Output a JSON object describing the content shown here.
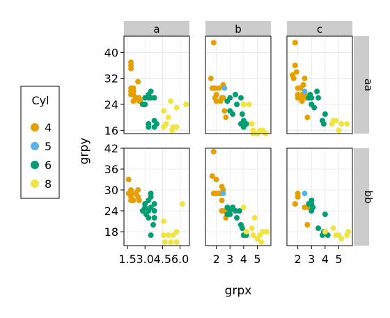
{
  "chart_data": {
    "type": "scatter",
    "xlabel": "grpx",
    "ylabel": "grpy",
    "legend": {
      "title": "Cyl",
      "position": "left",
      "entries": [
        "4",
        "5",
        "6",
        "8"
      ]
    },
    "colors": {
      "4": "#E69F00",
      "5": "#56B4E9",
      "6": "#009E73",
      "8": "#F0E442"
    },
    "columns": [
      "a",
      "b",
      "c"
    ],
    "rows": [
      "aa",
      "bb"
    ],
    "grid": true,
    "strip_color": "#cccccc",
    "facets": [
      {
        "col": "a",
        "row": "aa",
        "xlim": [
          1.2,
          6.8
        ],
        "ylim": [
          15,
          45
        ],
        "xticks": [
          1.5,
          3.0,
          4.5,
          6.0
        ],
        "yticks": [
          16,
          24,
          32,
          40
        ],
        "points": [
          [
            1.8,
            36,
            "4"
          ],
          [
            1.8,
            35,
            "4"
          ],
          [
            1.8,
            37,
            "4"
          ],
          [
            1.8,
            29,
            "4"
          ],
          [
            1.8,
            28,
            "4"
          ],
          [
            1.8,
            27,
            "4"
          ],
          [
            2.0,
            28,
            "4"
          ],
          [
            2.0,
            29,
            "4"
          ],
          [
            2.0,
            27,
            "4"
          ],
          [
            2.0,
            25,
            "4"
          ],
          [
            2.2,
            26,
            "4"
          ],
          [
            2.4,
            31,
            "4"
          ],
          [
            2.4,
            26,
            "4"
          ],
          [
            2.5,
            25,
            "4"
          ],
          [
            2.5,
            26,
            "4"
          ],
          [
            2.6,
            25,
            "4"
          ],
          [
            2.8,
            24,
            "6"
          ],
          [
            3.0,
            24,
            "6"
          ],
          [
            3.0,
            26,
            "6"
          ],
          [
            3.3,
            27,
            "6"
          ],
          [
            3.3,
            26,
            "6"
          ],
          [
            3.5,
            26,
            "6"
          ],
          [
            3.5,
            28,
            "6"
          ],
          [
            3.8,
            26,
            "6"
          ],
          [
            3.3,
            18,
            "6"
          ],
          [
            3.3,
            17,
            "6"
          ],
          [
            3.8,
            19,
            "6"
          ],
          [
            3.8,
            17,
            "6"
          ],
          [
            4.0,
            18,
            "6"
          ],
          [
            4.6,
            22,
            "8"
          ],
          [
            4.6,
            17,
            "8"
          ],
          [
            4.8,
            18,
            "8"
          ],
          [
            5.0,
            20,
            "8"
          ],
          [
            5.2,
            25,
            "8"
          ],
          [
            5.3,
            16,
            "8"
          ],
          [
            5.4,
            17,
            "8"
          ],
          [
            5.7,
            23,
            "8"
          ],
          [
            5.7,
            17,
            "8"
          ],
          [
            6.5,
            24,
            "8"
          ]
        ]
      },
      {
        "col": "b",
        "row": "aa",
        "xlim": [
          1.2,
          6.0
        ],
        "ylim": [
          15,
          45
        ],
        "xticks": [
          2,
          3,
          4,
          5
        ],
        "yticks": [
          16,
          24,
          32,
          40
        ],
        "points": [
          [
            1.8,
            43,
            "4"
          ],
          [
            1.6,
            32,
            "4"
          ],
          [
            1.7,
            29,
            "4"
          ],
          [
            1.9,
            29,
            "4"
          ],
          [
            1.9,
            26,
            "4"
          ],
          [
            2.0,
            27,
            "4"
          ],
          [
            2.0,
            25,
            "4"
          ],
          [
            2.2,
            29,
            "4"
          ],
          [
            2.3,
            25,
            "4"
          ],
          [
            2.4,
            26,
            "4"
          ],
          [
            2.5,
            30,
            "4"
          ],
          [
            2.5,
            26,
            "4"
          ],
          [
            2.6,
            22,
            "4"
          ],
          [
            2.7,
            20,
            "4"
          ],
          [
            2.6,
            29,
            "5"
          ],
          [
            2.8,
            25,
            "6"
          ],
          [
            3.0,
            26,
            "6"
          ],
          [
            3.0,
            22,
            "6"
          ],
          [
            3.2,
            21,
            "6"
          ],
          [
            3.4,
            27,
            "6"
          ],
          [
            3.5,
            24,
            "6"
          ],
          [
            3.8,
            26,
            "6"
          ],
          [
            3.8,
            18,
            "6"
          ],
          [
            3.9,
            21,
            "6"
          ],
          [
            4.0,
            17,
            "6"
          ],
          [
            4.0,
            19,
            "6"
          ],
          [
            4.2,
            18,
            "6"
          ],
          [
            4.0,
            24,
            "8"
          ],
          [
            4.4,
            24,
            "8"
          ],
          [
            4.6,
            18,
            "8"
          ],
          [
            4.7,
            16,
            "8"
          ],
          [
            4.7,
            15,
            "8"
          ],
          [
            5.0,
            15,
            "8"
          ],
          [
            5.2,
            16,
            "8"
          ],
          [
            5.4,
            16,
            "8"
          ],
          [
            5.6,
            15,
            "8"
          ]
        ]
      },
      {
        "col": "c",
        "row": "aa",
        "xlim": [
          1.2,
          6.0
        ],
        "ylim": [
          15,
          45
        ],
        "xticks": [
          2,
          3,
          4,
          5
        ],
        "yticks": [
          16,
          24,
          32,
          40
        ],
        "points": [
          [
            1.8,
            43,
            "4"
          ],
          [
            1.6,
            33,
            "4"
          ],
          [
            1.7,
            32,
            "4"
          ],
          [
            1.8,
            36,
            "4"
          ],
          [
            1.9,
            34,
            "4"
          ],
          [
            2.0,
            29,
            "4"
          ],
          [
            2.0,
            26,
            "4"
          ],
          [
            2.0,
            27,
            "4"
          ],
          [
            2.2,
            29,
            "4"
          ],
          [
            2.2,
            26,
            "4"
          ],
          [
            2.3,
            27,
            "4"
          ],
          [
            2.3,
            25,
            "4"
          ],
          [
            2.4,
            30,
            "4"
          ],
          [
            2.5,
            32,
            "4"
          ],
          [
            2.5,
            27,
            "4"
          ],
          [
            2.6,
            26,
            "4"
          ],
          [
            2.7,
            20,
            "4"
          ],
          [
            2.5,
            28,
            "5"
          ],
          [
            2.8,
            26,
            "6"
          ],
          [
            2.9,
            27,
            "6"
          ],
          [
            3.0,
            26,
            "6"
          ],
          [
            3.0,
            24,
            "6"
          ],
          [
            3.2,
            23,
            "6"
          ],
          [
            3.4,
            28,
            "6"
          ],
          [
            3.5,
            26,
            "6"
          ],
          [
            3.8,
            19,
            "6"
          ],
          [
            3.9,
            18,
            "6"
          ],
          [
            4.0,
            21,
            "6"
          ],
          [
            4.5,
            18,
            "8"
          ],
          [
            4.6,
            19,
            "8"
          ],
          [
            4.8,
            19,
            "8"
          ],
          [
            5.0,
            16,
            "8"
          ],
          [
            5.2,
            18,
            "8"
          ],
          [
            5.6,
            18,
            "8"
          ]
        ]
      },
      {
        "col": "a",
        "row": "bb",
        "xlim": [
          1.2,
          6.8
        ],
        "ylim": [
          14,
          42
        ],
        "xticks": [
          1.5,
          3.0,
          4.5,
          6.0
        ],
        "yticks": [
          18,
          24,
          30,
          36,
          42
        ],
        "points": [
          [
            1.6,
            33,
            "4"
          ],
          [
            1.6,
            29,
            "4"
          ],
          [
            1.8,
            30,
            "4"
          ],
          [
            1.8,
            28,
            "4"
          ],
          [
            1.8,
            27,
            "4"
          ],
          [
            1.9,
            29,
            "4"
          ],
          [
            2.0,
            27,
            "4"
          ],
          [
            2.2,
            29,
            "4"
          ],
          [
            2.4,
            30,
            "4"
          ],
          [
            2.4,
            28,
            "4"
          ],
          [
            2.5,
            27,
            "4"
          ],
          [
            2.8,
            24,
            "6"
          ],
          [
            3.0,
            25,
            "6"
          ],
          [
            3.0,
            26,
            "6"
          ],
          [
            3.1,
            23,
            "6"
          ],
          [
            3.3,
            27,
            "6"
          ],
          [
            3.3,
            24,
            "6"
          ],
          [
            3.3,
            22,
            "6"
          ],
          [
            3.5,
            29,
            "6"
          ],
          [
            3.5,
            28,
            "6"
          ],
          [
            3.5,
            25,
            "6"
          ],
          [
            3.5,
            17,
            "6"
          ],
          [
            3.7,
            20,
            "6"
          ],
          [
            3.8,
            24,
            "6"
          ],
          [
            3.8,
            22,
            "6"
          ],
          [
            3.8,
            26,
            "6"
          ],
          [
            4.6,
            21,
            "8"
          ],
          [
            4.6,
            17,
            "8"
          ],
          [
            4.7,
            15,
            "8"
          ],
          [
            5.0,
            17,
            "8"
          ],
          [
            5.2,
            15,
            "8"
          ],
          [
            5.4,
            17,
            "8"
          ],
          [
            5.7,
            15,
            "8"
          ],
          [
            5.7,
            18,
            "8"
          ],
          [
            6.2,
            26,
            "8"
          ]
        ]
      },
      {
        "col": "b",
        "row": "bb",
        "xlim": [
          1.2,
          6.0
        ],
        "ylim": [
          14,
          42
        ],
        "xticks": [
          2,
          3,
          4,
          5
        ],
        "yticks": [
          18,
          24,
          30,
          36,
          42
        ],
        "points": [
          [
            1.8,
            41,
            "4"
          ],
          [
            1.7,
            34,
            "4"
          ],
          [
            1.8,
            29,
            "4"
          ],
          [
            1.9,
            29,
            "4"
          ],
          [
            2.0,
            33,
            "4"
          ],
          [
            2.0,
            29,
            "4"
          ],
          [
            2.2,
            29,
            "4"
          ],
          [
            2.3,
            29,
            "4"
          ],
          [
            2.4,
            31,
            "4"
          ],
          [
            2.4,
            27,
            "4"
          ],
          [
            2.4,
            24,
            "4"
          ],
          [
            2.5,
            30,
            "4"
          ],
          [
            2.6,
            24,
            "4"
          ],
          [
            2.7,
            22,
            "4"
          ],
          [
            2.5,
            29,
            "5"
          ],
          [
            2.8,
            25,
            "6"
          ],
          [
            2.8,
            23,
            "6"
          ],
          [
            3.0,
            24,
            "6"
          ],
          [
            3.0,
            23,
            "6"
          ],
          [
            3.2,
            25,
            "6"
          ],
          [
            3.4,
            24,
            "6"
          ],
          [
            3.5,
            22,
            "6"
          ],
          [
            3.7,
            24,
            "6"
          ],
          [
            3.8,
            20,
            "6"
          ],
          [
            3.9,
            19,
            "6"
          ],
          [
            4.0,
            17,
            "6"
          ],
          [
            4.2,
            17,
            "6"
          ],
          [
            4.0,
            25,
            "8"
          ],
          [
            4.2,
            18,
            "8"
          ],
          [
            4.6,
            19,
            "8"
          ],
          [
            4.7,
            17,
            "8"
          ],
          [
            4.8,
            22,
            "8"
          ],
          [
            5.0,
            16,
            "8"
          ],
          [
            5.2,
            17,
            "8"
          ],
          [
            5.3,
            15,
            "8"
          ],
          [
            5.4,
            18,
            "8"
          ],
          [
            5.7,
            18,
            "8"
          ]
        ]
      },
      {
        "col": "c",
        "row": "bb",
        "xlim": [
          1.2,
          6.0
        ],
        "ylim": [
          14,
          42
        ],
        "xticks": [
          2,
          3,
          4,
          5
        ],
        "yticks": [
          18,
          24,
          30,
          36,
          42
        ],
        "points": [
          [
            1.8,
            26,
            "4"
          ],
          [
            2.0,
            29,
            "4"
          ],
          [
            2.0,
            28,
            "4"
          ],
          [
            2.5,
            25,
            "4"
          ],
          [
            2.7,
            20,
            "4"
          ],
          [
            2.8,
            25,
            "4"
          ],
          [
            2.5,
            29,
            "5"
          ],
          [
            2.8,
            26,
            "6"
          ],
          [
            3.0,
            24,
            "6"
          ],
          [
            3.0,
            26,
            "6"
          ],
          [
            3.0,
            27,
            "6"
          ],
          [
            3.1,
            25,
            "6"
          ],
          [
            3.5,
            19,
            "6"
          ],
          [
            3.8,
            17,
            "6"
          ],
          [
            3.9,
            18,
            "6"
          ],
          [
            4.0,
            23,
            "6"
          ],
          [
            4.0,
            18,
            "6"
          ],
          [
            4.2,
            17,
            "6"
          ],
          [
            4.0,
            18,
            "8"
          ],
          [
            4.6,
            19,
            "8"
          ],
          [
            4.8,
            17,
            "8"
          ],
          [
            5.0,
            17,
            "8"
          ],
          [
            5.2,
            16,
            "8"
          ],
          [
            5.6,
            17,
            "8"
          ],
          [
            5.7,
            18,
            "8"
          ]
        ]
      }
    ]
  }
}
